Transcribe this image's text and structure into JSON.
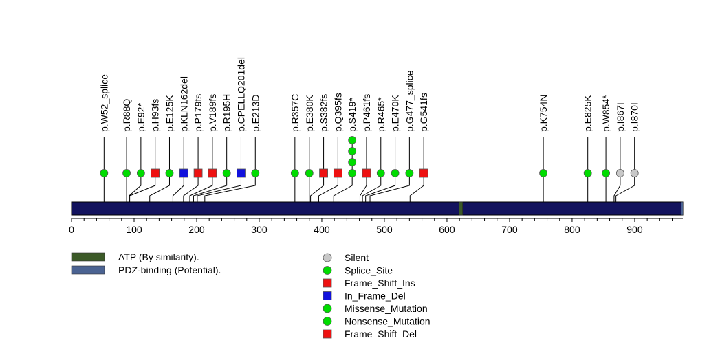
{
  "chart_data": {
    "type": "lollipop",
    "protein_length": 977,
    "axis": {
      "range": [
        0,
        977
      ],
      "ticks": [
        0,
        100,
        200,
        300,
        400,
        500,
        600,
        700,
        800,
        900
      ]
    },
    "colors": {
      "backbone": "#13135e",
      "atp": "#3c5a28",
      "pdz": "#4b6392",
      "Silent": "#c8c8c8",
      "Splice_Site": "#00dc00",
      "Frame_Shift_Ins": "#ee1111",
      "In_Frame_Del": "#1111dd",
      "Missense_Mutation": "#00dc00",
      "Nonsense_Mutation": "#00dc00",
      "Frame_Shift_Del": "#ee1111"
    },
    "domains": [
      {
        "name": "ATP (By similarity).",
        "start": 619,
        "end": 625,
        "color": "#3c5a28"
      },
      {
        "name": "PDZ-binding (Potential).",
        "start": 974,
        "end": 977,
        "color": "#4b6392"
      }
    ],
    "mutations": [
      {
        "label": "p.W52_splice",
        "pos": 52,
        "count": 1,
        "type": "Splice_Site",
        "shape": "circle"
      },
      {
        "label": "p.R88Q",
        "pos": 88,
        "count": 1,
        "type": "Missense_Mutation",
        "shape": "circle"
      },
      {
        "label": "p.E92*",
        "pos": 92,
        "count": 1,
        "type": "Nonsense_Mutation",
        "shape": "circle"
      },
      {
        "label": "p.H93fs",
        "pos": 93,
        "count": 1,
        "type": "Frame_Shift_Ins",
        "shape": "square"
      },
      {
        "label": "p.E125K",
        "pos": 125,
        "count": 1,
        "type": "Missense_Mutation",
        "shape": "circle"
      },
      {
        "label": "p.KLN162del",
        "pos": 162,
        "count": 1,
        "type": "In_Frame_Del",
        "shape": "square"
      },
      {
        "label": "p.P179fs",
        "pos": 179,
        "count": 1,
        "type": "Frame_Shift_Del",
        "shape": "square"
      },
      {
        "label": "p.V189fs",
        "pos": 189,
        "count": 1,
        "type": "Frame_Shift_Del",
        "shape": "square"
      },
      {
        "label": "p.R195H",
        "pos": 195,
        "count": 1,
        "type": "Missense_Mutation",
        "shape": "circle"
      },
      {
        "label": "p.CPELLQ201del",
        "pos": 201,
        "count": 1,
        "type": "In_Frame_Del",
        "shape": "square"
      },
      {
        "label": "p.E213D",
        "pos": 213,
        "count": 1,
        "type": "Missense_Mutation",
        "shape": "circle"
      },
      {
        "label": "p.R357C",
        "pos": 357,
        "count": 1,
        "type": "Missense_Mutation",
        "shape": "circle"
      },
      {
        "label": "p.E380K",
        "pos": 380,
        "count": 1,
        "type": "Missense_Mutation",
        "shape": "circle"
      },
      {
        "label": "p.S382fs",
        "pos": 382,
        "count": 1,
        "type": "Frame_Shift_Ins",
        "shape": "square"
      },
      {
        "label": "p.Q395fs",
        "pos": 395,
        "count": 1,
        "type": "Frame_Shift_Del",
        "shape": "square"
      },
      {
        "label": "p.S419*",
        "pos": 419,
        "count": 4,
        "type": "Nonsense_Mutation",
        "shape": "circle"
      },
      {
        "label": "p.P461fs",
        "pos": 461,
        "count": 1,
        "type": "Frame_Shift_Del",
        "shape": "square"
      },
      {
        "label": "p.R465*",
        "pos": 465,
        "count": 1,
        "type": "Nonsense_Mutation",
        "shape": "circle"
      },
      {
        "label": "p.E470K",
        "pos": 470,
        "count": 1,
        "type": "Missense_Mutation",
        "shape": "circle"
      },
      {
        "label": "p.G477_splice",
        "pos": 477,
        "count": 1,
        "type": "Splice_Site",
        "shape": "circle"
      },
      {
        "label": "p.G541fs",
        "pos": 541,
        "count": 1,
        "type": "Frame_Shift_Del",
        "shape": "square"
      },
      {
        "label": "p.K754N",
        "pos": 754,
        "count": 1,
        "type": "Missense_Mutation",
        "shape": "circle"
      },
      {
        "label": "p.E825K",
        "pos": 825,
        "count": 1,
        "type": "Missense_Mutation",
        "shape": "circle"
      },
      {
        "label": "p.W854*",
        "pos": 854,
        "count": 1,
        "type": "Nonsense_Mutation",
        "shape": "circle"
      },
      {
        "label": "p.I867I",
        "pos": 867,
        "count": 1,
        "type": "Silent",
        "shape": "circle"
      },
      {
        "label": "p.I870I",
        "pos": 870,
        "count": 1,
        "type": "Silent",
        "shape": "circle"
      }
    ],
    "domain_legend": [
      {
        "label": "ATP (By similarity).",
        "color": "#3c5a28"
      },
      {
        "label": "PDZ-binding (Potential).",
        "color": "#4b6392"
      }
    ],
    "type_legend": [
      {
        "label": "Silent",
        "color": "#c8c8c8",
        "shape": "circle"
      },
      {
        "label": "Splice_Site",
        "color": "#00dc00",
        "shape": "circle"
      },
      {
        "label": "Frame_Shift_Ins",
        "color": "#ee1111",
        "shape": "square"
      },
      {
        "label": "In_Frame_Del",
        "color": "#1111dd",
        "shape": "square"
      },
      {
        "label": "Missense_Mutation",
        "color": "#00dc00",
        "shape": "circle"
      },
      {
        "label": "Nonsense_Mutation",
        "color": "#00dc00",
        "shape": "circle"
      },
      {
        "label": "Frame_Shift_Del",
        "color": "#ee1111",
        "shape": "square"
      }
    ]
  }
}
